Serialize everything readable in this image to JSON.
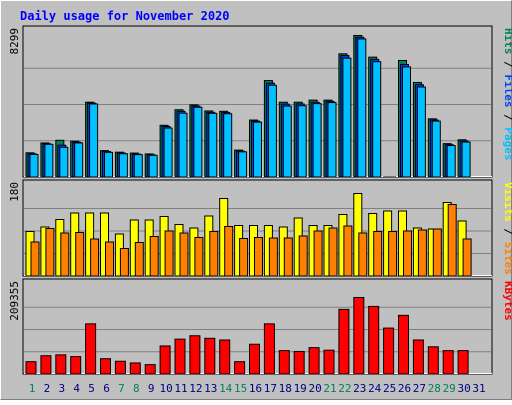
{
  "chart_data": {
    "type": "bar",
    "title": "Daily usage for November 2020",
    "categories": [
      "1",
      "2",
      "3",
      "4",
      "5",
      "6",
      "7",
      "8",
      "9",
      "10",
      "11",
      "12",
      "13",
      "14",
      "15",
      "16",
      "17",
      "18",
      "19",
      "20",
      "21",
      "22",
      "23",
      "24",
      "25",
      "26",
      "27",
      "28",
      "29",
      "30",
      "31"
    ],
    "weekend_days": [
      "1",
      "7",
      "8",
      "14",
      "15",
      "21",
      "22",
      "28",
      "29"
    ],
    "panels": [
      {
        "id": "top",
        "ymax_label": "8299",
        "ylim": [
          0,
          8299
        ],
        "right_labels": [
          "Pages",
          "Files",
          "Hits"
        ],
        "series": [
          {
            "name": "Hits",
            "values": [
              1385,
              1950,
              2100,
              2050,
              4280,
              1510,
              1420,
              1370,
              1320,
              2960,
              3850,
              4130,
              3780,
              3760,
              1540,
              3260,
              5520,
              4280,
              4280,
              4400,
              4400,
              7050,
              8100,
              6860,
              1,
              6670,
              5410,
              3330,
              1910,
              2130,
              0
            ]
          },
          {
            "name": "Files",
            "values": [
              1330,
              1900,
              1820,
              1990,
              4230,
              1460,
              1370,
              1310,
              1270,
              2890,
              3760,
              4060,
              3700,
              3690,
              1480,
              3200,
              5370,
              4170,
              4180,
              4280,
              4330,
              6950,
              8000,
              6730,
              1,
              6440,
              5280,
              3260,
              1850,
              2060,
              0
            ]
          },
          {
            "name": "Pages",
            "values": [
              1290,
              1870,
              1700,
              1950,
              4180,
              1410,
              1330,
              1280,
              1240,
              2800,
              3650,
              3990,
              3640,
              3620,
              1440,
              3140,
              5250,
              4060,
              4080,
              4200,
              4260,
              6800,
              7900,
              6600,
              1,
              6300,
              5150,
              3200,
              1800,
              2000,
              0
            ]
          }
        ]
      },
      {
        "id": "middle",
        "ymax_label": "180",
        "ylim": [
          0,
          180
        ],
        "right_labels": [
          "Sites",
          "Visits"
        ],
        "series": [
          {
            "name": "Visits",
            "values": [
              89,
              98,
              113,
              126,
              126,
              126,
              84,
              112,
              112,
              119,
              103,
              96,
              120,
              155,
              101,
              101,
              101,
              98,
              116,
              101,
              101,
              123,
              165,
              125,
              130,
              130,
              96,
              94,
              147,
              110,
              0
            ]
          },
          {
            "name": "Sites",
            "values": [
              68,
              95,
              86,
              87,
              74,
              68,
              55,
              67,
              79,
              90,
              86,
              77,
              89,
              99,
              75,
              77,
              76,
              76,
              80,
              90,
              96,
              100,
              86,
              89,
              89,
              90,
              92,
              94,
              143,
              74,
              0
            ]
          }
        ]
      },
      {
        "id": "bottom",
        "ymax_label": "209355",
        "ylim": [
          0,
          209355
        ],
        "right_labels": [
          "KBytes"
        ],
        "series": [
          {
            "name": "KBytes",
            "values": [
              29000,
              43000,
              45000,
              41000,
              118000,
              36000,
              30000,
              26000,
              22000,
              66000,
              82000,
              90000,
              84000,
              80000,
              29000,
              70000,
              118000,
              55000,
              53000,
              62000,
              56000,
              152000,
              180000,
              159000,
              108000,
              138000,
              80000,
              64000,
              55000,
              55000,
              0
            ]
          }
        ]
      }
    ]
  },
  "colors": {
    "background": "#c0c0c0",
    "title": "#0000ff",
    "hits": "#00805c",
    "files": "#0040ff",
    "pages": "#00c0ff",
    "visits": "#ffff00",
    "sites": "#ff8000",
    "kbytes": "#ff0000",
    "weekday_label": "#000080",
    "weekend_label": "#00805c"
  }
}
